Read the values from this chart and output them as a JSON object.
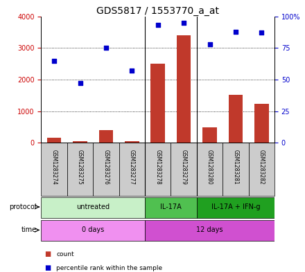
{
  "title": "GDS5817 / 1553770_a_at",
  "samples": [
    "GSM1283274",
    "GSM1283275",
    "GSM1283276",
    "GSM1283277",
    "GSM1283278",
    "GSM1283279",
    "GSM1283280",
    "GSM1283281",
    "GSM1283282"
  ],
  "counts": [
    150,
    50,
    400,
    60,
    2500,
    3400,
    480,
    1520,
    1230
  ],
  "percentile_ranks": [
    65,
    47,
    75,
    57,
    93,
    95,
    78,
    88,
    87
  ],
  "ylim_left": [
    0,
    4000
  ],
  "ylim_right": [
    0,
    100
  ],
  "yticks_left": [
    0,
    1000,
    2000,
    3000,
    4000
  ],
  "yticks_right": [
    0,
    25,
    50,
    75,
    100
  ],
  "ytick_labels_right": [
    "0",
    "25",
    "50",
    "75",
    "100%"
  ],
  "bar_color": "#c0392b",
  "dot_color": "#0000cc",
  "protocol_groups": [
    {
      "label": "untreated",
      "start": 0,
      "end": 4,
      "color": "#c8f0c8"
    },
    {
      "label": "IL-17A",
      "start": 4,
      "end": 6,
      "color": "#50c050"
    },
    {
      "label": "IL-17A + IFN-g",
      "start": 6,
      "end": 9,
      "color": "#20a020"
    }
  ],
  "time_groups": [
    {
      "label": "0 days",
      "start": 0,
      "end": 4,
      "color": "#f090f0"
    },
    {
      "label": "12 days",
      "start": 4,
      "end": 9,
      "color": "#d050d0"
    }
  ],
  "protocol_label": "protocol",
  "time_label": "time",
  "legend_count_label": "count",
  "legend_pct_label": "percentile rank within the sample",
  "background_color": "#ffffff",
  "plot_bg_color": "#ffffff",
  "grid_color": "#000000",
  "left_tick_color": "#cc0000",
  "right_tick_color": "#0000cc",
  "title_fontsize": 10,
  "tick_fontsize": 7,
  "label_fontsize": 7,
  "sample_bg_color": "#cccccc"
}
